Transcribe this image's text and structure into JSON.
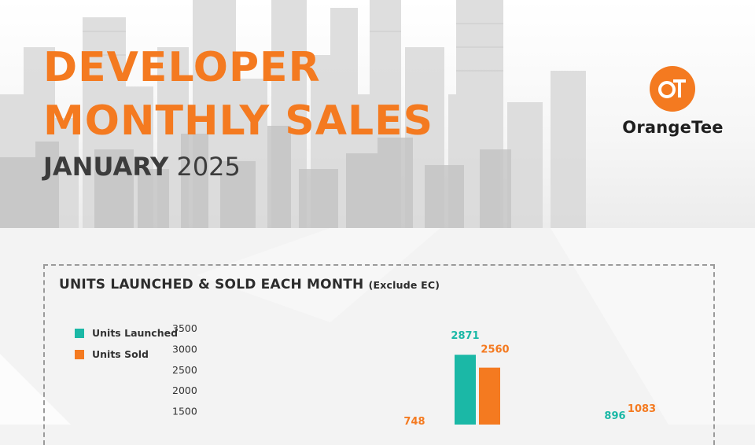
{
  "header": {
    "title_line1": "DEVELOPER",
    "title_line2": "MONTHLY SALES",
    "subtitle_month": "JANUARY",
    "subtitle_year": "2025"
  },
  "brand": {
    "logo_mark": "OT",
    "logo_name": "OrangeTee",
    "accent": "#f47a20"
  },
  "chart_data": {
    "type": "bar",
    "title": "UNITS LAUNCHED & SOLD EACH MONTH",
    "title_note": "(Exclude EC)",
    "yticks": [
      1500,
      2000,
      2500,
      3000,
      3500
    ],
    "series": [
      {
        "name": "Units Launched",
        "color": "#1bb8a6"
      },
      {
        "name": "Units Sold",
        "color": "#f47a20"
      }
    ],
    "visible_bars": [
      {
        "series": "Units Launched",
        "value": 2871
      },
      {
        "series": "Units Sold",
        "value": 2560
      }
    ],
    "visible_labels": [
      {
        "series": "Units Sold",
        "value": 748
      },
      {
        "series": "Units Launched",
        "value": 896
      },
      {
        "series": "Units Sold",
        "value": 1083
      }
    ]
  }
}
